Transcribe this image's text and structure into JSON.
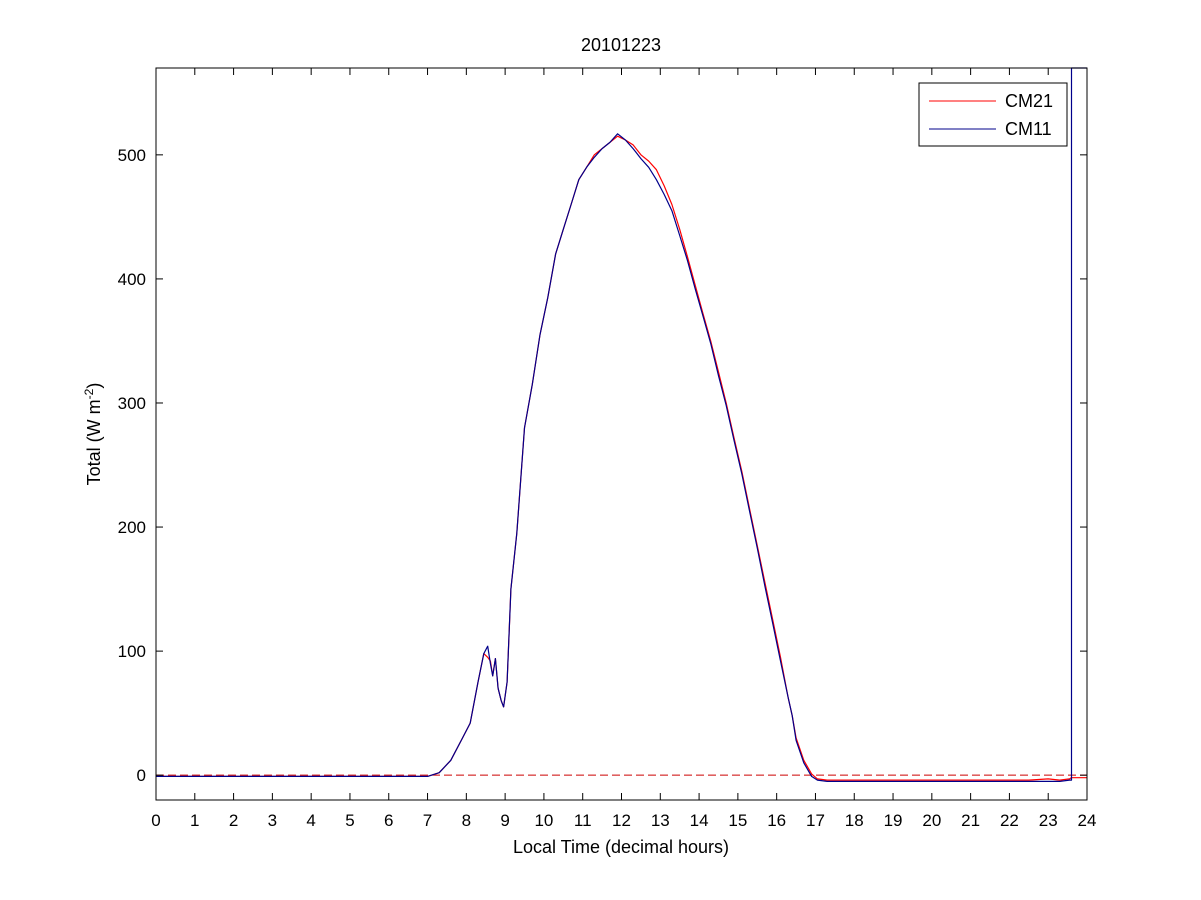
{
  "chart_data": {
    "type": "line",
    "title": "20101223",
    "xlabel": "Local Time (decimal hours)",
    "ylabel": {
      "main": "Total (W m",
      "sup": "-2",
      "close": ")"
    },
    "xlim": [
      0,
      24
    ],
    "ylim": [
      -20,
      570
    ],
    "xticks": [
      "0",
      "1",
      "2",
      "3",
      "4",
      "5",
      "6",
      "7",
      "8",
      "9",
      "10",
      "11",
      "12",
      "13",
      "14",
      "15",
      "16",
      "17",
      "18",
      "19",
      "20",
      "21",
      "22",
      "23",
      "24"
    ],
    "yticks": [
      "0",
      "100",
      "200",
      "300",
      "400",
      "500"
    ],
    "grid": false,
    "legend_position": "top-right",
    "reference_line": {
      "y": 0,
      "style": "dashed",
      "color": "#cc0000"
    },
    "series": [
      {
        "name": "CM21",
        "color": "#ff0000",
        "x": [
          0,
          1,
          2,
          3,
          4,
          5,
          6,
          7,
          7.3,
          7.6,
          7.9,
          8.1,
          8.3,
          8.45,
          8.55,
          8.62,
          8.68,
          8.75,
          8.82,
          8.9,
          8.96,
          9.05,
          9.15,
          9.3,
          9.5,
          9.7,
          9.9,
          10.1,
          10.3,
          10.5,
          10.7,
          10.9,
          11.1,
          11.3,
          11.5,
          11.7,
          11.9,
          12.1,
          12.3,
          12.5,
          12.7,
          12.9,
          13.1,
          13.3,
          13.5,
          13.7,
          13.9,
          14.1,
          14.3,
          14.5,
          14.7,
          14.9,
          15.1,
          15.3,
          15.5,
          15.7,
          15.9,
          16.1,
          16.3,
          16.4,
          16.5,
          16.7,
          16.9,
          17.05,
          17.3,
          17.6,
          18,
          19,
          20,
          21,
          22,
          22.5,
          23,
          23.3,
          23.55,
          23.6,
          24
        ],
        "y": [
          -1,
          -1,
          -1,
          -1,
          -1,
          -1,
          -1,
          -1,
          2,
          12,
          30,
          42,
          75,
          98,
          95,
          92,
          80,
          94,
          70,
          60,
          55,
          75,
          150,
          195,
          280,
          315,
          355,
          385,
          420,
          440,
          460,
          480,
          490,
          500,
          505,
          510,
          515,
          512,
          508,
          500,
          495,
          488,
          475,
          460,
          440,
          418,
          395,
          372,
          350,
          325,
          300,
          272,
          245,
          215,
          185,
          155,
          125,
          95,
          62,
          48,
          30,
          12,
          1,
          -3,
          -4,
          -4,
          -4,
          -4,
          -4,
          -4,
          -4,
          -4,
          -3,
          -4,
          -3,
          -2,
          -2
        ]
      },
      {
        "name": "CM11",
        "color": "#00008b",
        "x": [
          0,
          1,
          2,
          3,
          4,
          5,
          6,
          7,
          7.3,
          7.6,
          7.9,
          8.1,
          8.3,
          8.45,
          8.55,
          8.62,
          8.68,
          8.75,
          8.82,
          8.9,
          8.96,
          9.05,
          9.15,
          9.3,
          9.5,
          9.7,
          9.9,
          10.1,
          10.3,
          10.5,
          10.7,
          10.9,
          11.1,
          11.3,
          11.5,
          11.7,
          11.9,
          12.1,
          12.3,
          12.5,
          12.7,
          12.9,
          13.1,
          13.3,
          13.5,
          13.7,
          13.9,
          14.1,
          14.3,
          14.5,
          14.7,
          14.9,
          15.1,
          15.3,
          15.5,
          15.7,
          15.9,
          16.1,
          16.3,
          16.4,
          16.5,
          16.7,
          16.9,
          17.05,
          17.3,
          17.6,
          18,
          19,
          20,
          21,
          22,
          22.5,
          23,
          23.3,
          23.55,
          23.6,
          23.6,
          24
        ],
        "y": [
          -1,
          -1,
          -1,
          -1,
          -1,
          -1,
          -1,
          -1,
          2,
          12,
          30,
          42,
          75,
          98,
          104,
          90,
          80,
          94,
          70,
          60,
          55,
          75,
          150,
          195,
          280,
          315,
          355,
          385,
          420,
          440,
          460,
          480,
          490,
          498,
          505,
          510,
          517,
          512,
          505,
          497,
          490,
          480,
          468,
          455,
          435,
          415,
          392,
          370,
          348,
          322,
          298,
          270,
          243,
          213,
          183,
          152,
          122,
          92,
          62,
          48,
          28,
          10,
          -1,
          -4,
          -5,
          -5,
          -5,
          -5,
          -5,
          -5,
          -5,
          -5,
          -5,
          -5,
          -4,
          -4,
          570,
          570
        ]
      }
    ]
  }
}
